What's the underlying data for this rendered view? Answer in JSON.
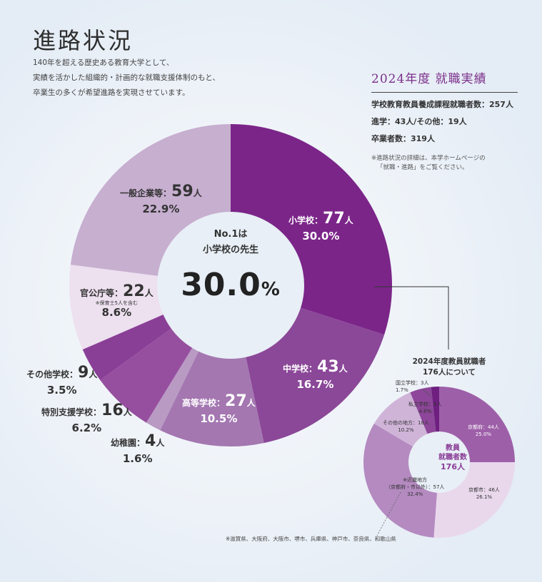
{
  "title": "進路状況",
  "intro": [
    "140年を超える歴史ある教育大学として、",
    "実績を活かした組織的・計画的な就職支援体制のもと、",
    "卒業生の多くが希望進路を実現させています。"
  ],
  "stats": {
    "title": "2024年度 就職実績",
    "lines": [
      "学校教育教員養成課程就職者数：257人",
      "進学：43人/その他：19人",
      "卒業者数：319人"
    ],
    "note": [
      "※進路状況の詳細は、本学ホームページの",
      "「就職・進路」をご覧ください。"
    ]
  },
  "center": {
    "line1": "No.1は",
    "line2": "小学校の先生",
    "value": "30.0",
    "unit": "%"
  },
  "chart_data": [
    {
      "type": "pie",
      "slices": [
        {
          "label": "小学校",
          "count": 77,
          "unit": "人",
          "percent": "30.0%",
          "color": "#7b2589"
        },
        {
          "label": "中学校",
          "count": 43,
          "unit": "人",
          "percent": "16.7%",
          "color": "#8b4798"
        },
        {
          "label": "高等学校",
          "count": 27,
          "unit": "人",
          "percent": "10.5%",
          "color": "#a477b1"
        },
        {
          "label": "幼稚園",
          "count": 4,
          "unit": "人",
          "percent": "1.6%",
          "color": "#b99ac3"
        },
        {
          "label": "特別支援学校",
          "count": 16,
          "unit": "人",
          "percent": "6.2%",
          "color": "#964f9f"
        },
        {
          "label": "その他学校",
          "count": 9,
          "unit": "人",
          "percent": "3.5%",
          "color": "#8a3f96"
        },
        {
          "label": "官公庁等",
          "count": 22,
          "unit": "人",
          "percent": "8.6%",
          "color": "#ede0ef",
          "note": "※保育士5人を含む"
        },
        {
          "label": "一般企業等",
          "count": 59,
          "unit": "人",
          "percent": "22.9%",
          "color": "#c7afd0"
        }
      ]
    },
    {
      "type": "pie",
      "title": [
        "2024年度教員就職者",
        "176人について"
      ],
      "center": [
        "教員",
        "就職者数",
        "176人"
      ],
      "slices": [
        {
          "label": "京都府",
          "count": 44,
          "unit": "人",
          "percent": "25.0%",
          "color": "#9e5fa9"
        },
        {
          "label": "京都市",
          "count": 46,
          "unit": "人",
          "percent": "26.1%",
          "color": "#e9d8ec"
        },
        {
          "label": "※近畿地方（京都府・市以外）",
          "label_lines": [
            "※近畿地方",
            "（京都府・市以外）"
          ],
          "count": 57,
          "unit": "人",
          "percent": "32.4%",
          "color": "#b48ac0"
        },
        {
          "label": "その他の地方",
          "count": 18,
          "unit": "人",
          "percent": "10.2%",
          "color": "#cfb4d8"
        },
        {
          "label": "私立学校",
          "count": 8,
          "unit": "人",
          "percent": "4.6%",
          "color": "#8d4699"
        },
        {
          "label": "国立学校",
          "count": 3,
          "unit": "人",
          "percent": "1.7%",
          "color": "#6e1f80"
        }
      ]
    }
  ],
  "footnote": "※滋賀県、大阪府、大阪市、堺市、兵庫県、神戸市、奈良県、和歌山県"
}
